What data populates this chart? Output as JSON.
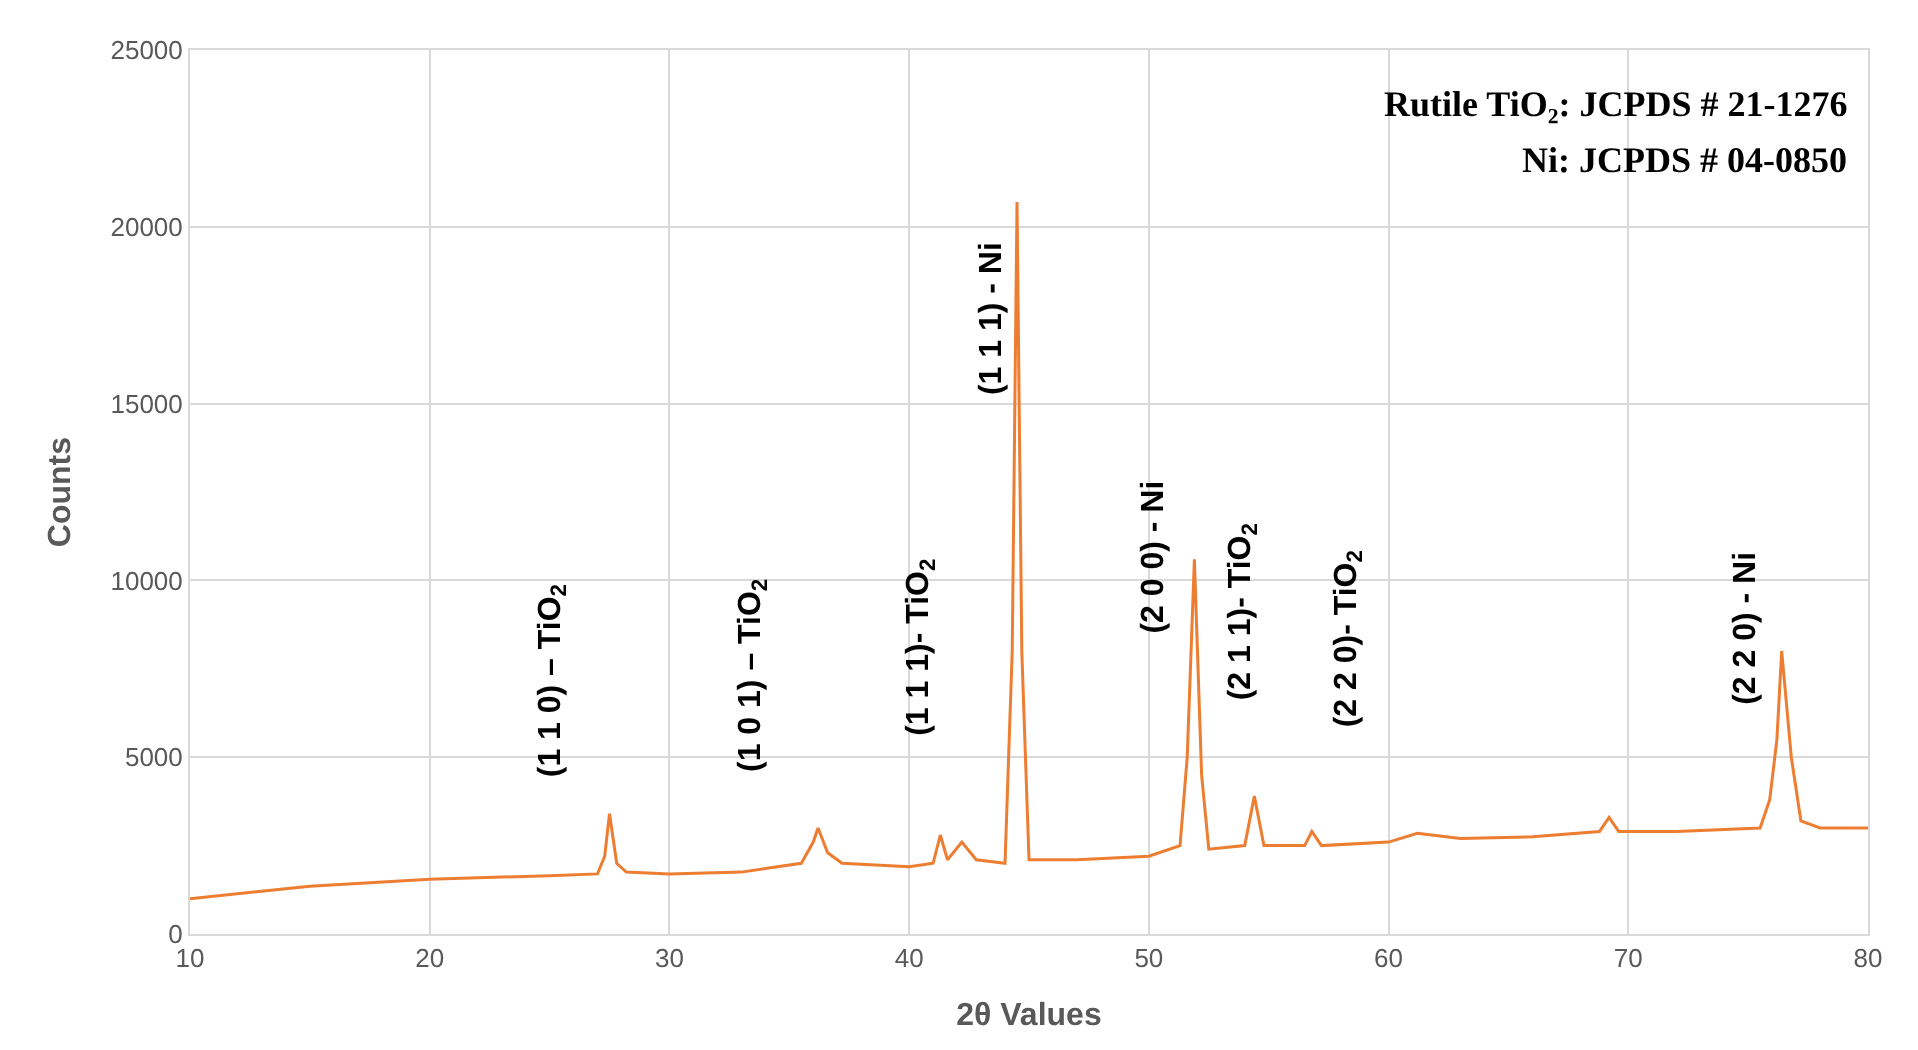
{
  "chart_data": {
    "type": "line",
    "xlabel": "2θ Values",
    "ylabel": "Counts",
    "x": [
      10,
      15,
      20,
      25,
      27.0,
      27.3,
      27.5,
      27.8,
      28.2,
      30,
      33,
      35.5,
      36.0,
      36.2,
      36.6,
      37.2,
      40,
      41.0,
      41.3,
      41.6,
      42.2,
      42.8,
      44.0,
      44.3,
      44.5,
      44.7,
      45.0,
      47,
      50,
      51.3,
      51.6,
      51.9,
      52.2,
      52.5,
      54.0,
      54.4,
      54.8,
      56.5,
      56.8,
      57.2,
      60,
      61.2,
      63,
      66,
      68.8,
      69.2,
      69.6,
      72,
      75.5,
      75.9,
      76.2,
      76.4,
      76.6,
      76.8,
      77.2,
      78,
      80
    ],
    "series": [
      {
        "color": "#ed7d31",
        "values": [
          1000,
          1350,
          1550,
          1650,
          1700,
          2200,
          3400,
          2000,
          1750,
          1700,
          1750,
          2000,
          2600,
          3000,
          2300,
          2000,
          1900,
          2000,
          2800,
          2100,
          2600,
          2100,
          2000,
          8000,
          20700,
          8000,
          2100,
          2100,
          2200,
          2500,
          5000,
          10600,
          4500,
          2400,
          2500,
          3900,
          2500,
          2500,
          2900,
          2500,
          2600,
          2850,
          2700,
          2750,
          2900,
          3300,
          2900,
          2900,
          3000,
          3800,
          5500,
          8000,
          6500,
          5000,
          3200,
          3000,
          3000
        ]
      }
    ],
    "xlim": [
      10,
      80
    ],
    "xticks": [
      10,
      20,
      30,
      40,
      50,
      60,
      70,
      80
    ],
    "ylim": [
      0,
      25000
    ],
    "yticks": [
      0,
      5000,
      10000,
      15000,
      20000,
      25000
    ],
    "grid": true,
    "marker": "none",
    "line_style": "solid",
    "annotations": [
      {
        "text": "(1 1 0) – TiO$_{2}$",
        "x": 27.5,
        "y": 3400
      },
      {
        "text": "(1 0 1) – TiO$_{2}$",
        "x": 36.2,
        "y": 3000
      },
      "(1 1 1)- TiO$_{2}$",
      {
        "text": "(1 1 1) - Ni",
        "x": 44.5,
        "y": 20700
      },
      {
        "text": "(2 0 0) - Ni",
        "x": 51.9,
        "y": 10600
      },
      "(2 1 1)- TiO$_{2}$",
      "(2 2 0)- TiO$_{2}$",
      {
        "text": "(2 2 0) - Ni",
        "x": 76.4,
        "y": 8000
      },
      "Rutile TiO₂: JCPDS # 21-1276",
      "Ni: JCPDS # 04-0850"
    ]
  }
}
